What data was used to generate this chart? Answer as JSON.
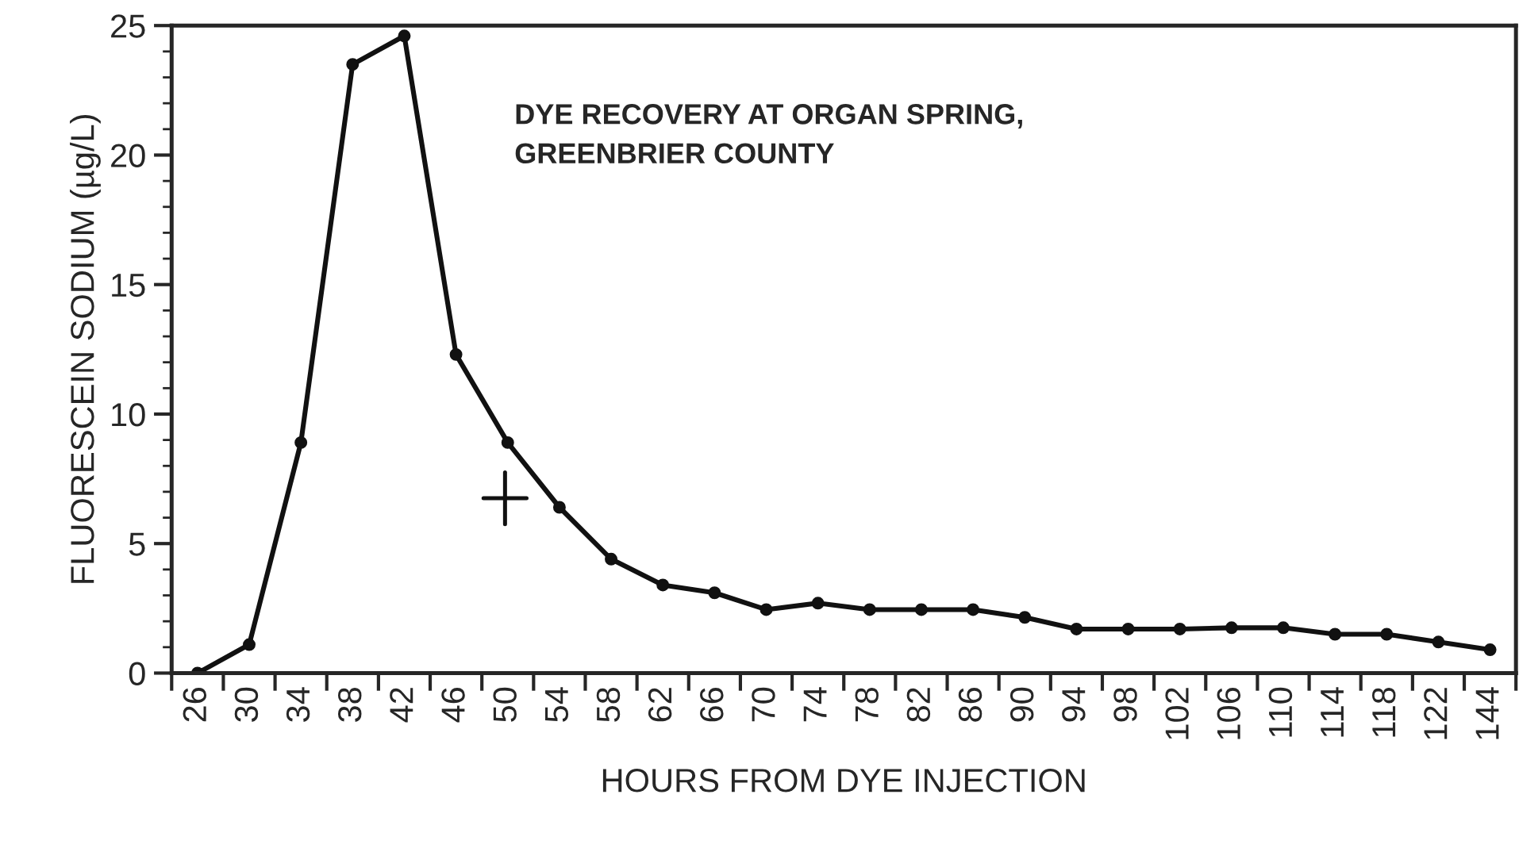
{
  "chart_data": {
    "type": "line",
    "title": "DYE RECOVERY AT ORGAN SPRING,\nGREENBRIER COUNTY",
    "xlabel": "HOURS FROM DYE INJECTION",
    "ylabel": "FLUORESCEIN SODIUM (µg/L)",
    "categories": [
      "26",
      "30",
      "34",
      "38",
      "42",
      "46",
      "50",
      "54",
      "58",
      "62",
      "66",
      "70",
      "74",
      "78",
      "82",
      "86",
      "90",
      "94",
      "98",
      "102",
      "106",
      "110",
      "114",
      "118",
      "122",
      "144"
    ],
    "series": [
      {
        "color": "#111111",
        "values": [
          0,
          1.1,
          8.9,
          23.5,
          24.6,
          12.3,
          8.9,
          6.4,
          4.4,
          3.4,
          3.1,
          2.45,
          2.7,
          2.45,
          2.45,
          2.45,
          2.15,
          1.7,
          1.7,
          1.7,
          1.75,
          1.75,
          1.5,
          1.5,
          1.2,
          0.9
        ]
      }
    ],
    "ylim": [
      0,
      25
    ],
    "yticks": [
      0,
      5,
      10,
      15,
      20,
      25
    ],
    "marker": "circle",
    "line_style": "solid",
    "grid": false,
    "legend": false
  }
}
